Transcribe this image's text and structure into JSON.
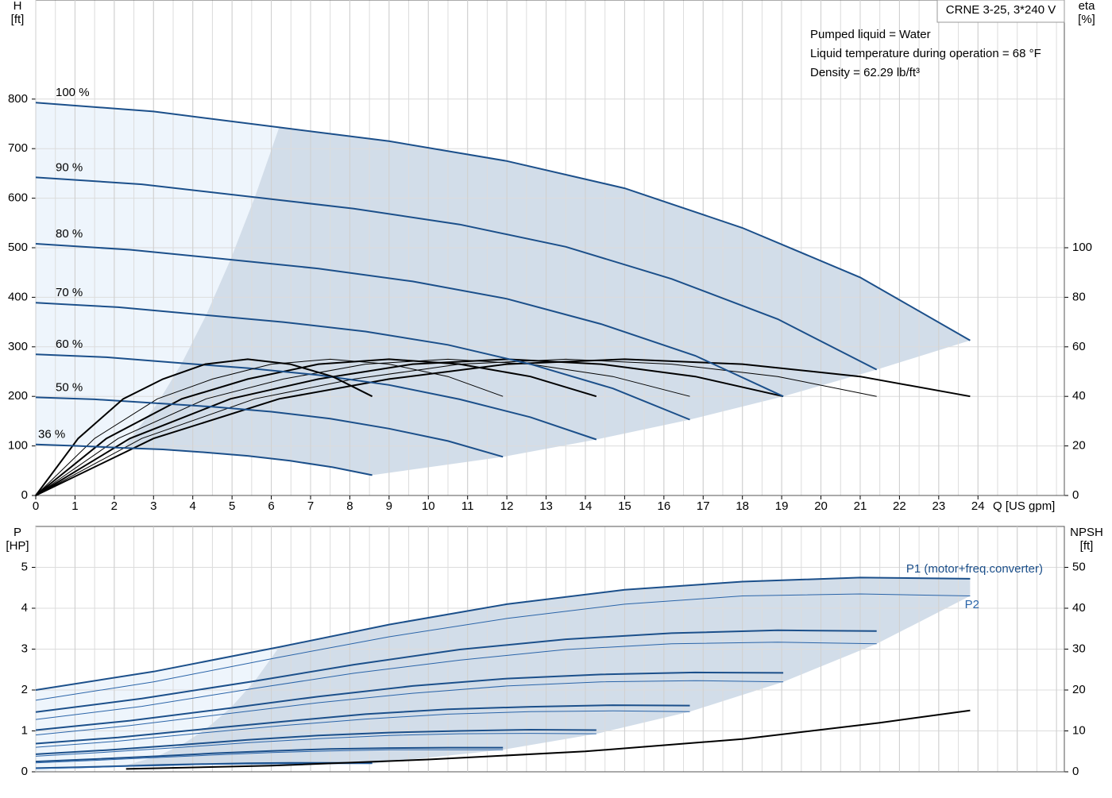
{
  "chart_data": [
    {
      "type": "line",
      "model": "CRNE 3-25, 3*240 V",
      "info": [
        "Pumped liquid = Water",
        "Liquid temperature during operation = 68 °F",
        "Density = 62.29 lb/ft³"
      ],
      "y_label": "H",
      "y_unit": "[ft]",
      "y2_label": "eta",
      "y2_unit": "[%]",
      "x_label": "Q [US gpm]",
      "xlim": [
        0,
        26.2
      ],
      "xticks": [
        0,
        1,
        2,
        3,
        4,
        5,
        6,
        7,
        8,
        9,
        10,
        11,
        12,
        13,
        14,
        15,
        16,
        17,
        18,
        19,
        20,
        21,
        22,
        23,
        24
      ],
      "ylim": [
        0,
        1000
      ],
      "yticks": [
        0,
        100,
        200,
        300,
        400,
        500,
        600,
        700,
        800
      ],
      "y2lim": [
        0,
        200
      ],
      "y2ticks": [
        0,
        20,
        40,
        60,
        80,
        100
      ],
      "grid": true,
      "series": [
        {
          "name": "100 %",
          "color": "#1b4f8a",
          "x": [
            0,
            3,
            6.2,
            9,
            12,
            15,
            18,
            21,
            23.8
          ],
          "values": [
            793,
            775,
            743,
            715,
            675,
            620,
            540,
            440,
            313
          ],
          "eta": [
            0,
            23,
            39,
            47,
            53,
            55,
            53,
            48,
            40
          ]
        },
        {
          "name": "90 %",
          "color": "#1b4f8a",
          "x": [
            0,
            2.7,
            5.58,
            8.1,
            10.8,
            13.5,
            16.2,
            18.9,
            21.42
          ],
          "values": [
            642,
            628,
            602,
            579,
            547,
            502,
            437,
            356,
            254
          ],
          "eta": [
            0,
            23,
            39,
            47,
            53,
            55,
            53,
            48,
            40
          ]
        },
        {
          "name": "80 %",
          "color": "#1b4f8a",
          "x": [
            0,
            2.4,
            4.96,
            7.2,
            9.6,
            12,
            14.4,
            16.8,
            19.04
          ],
          "values": [
            508,
            496,
            476,
            458,
            432,
            397,
            346,
            282,
            200
          ],
          "eta": [
            0,
            23,
            39,
            47,
            53,
            55,
            53,
            48,
            40
          ]
        },
        {
          "name": "70 %",
          "color": "#1b4f8a",
          "x": [
            0,
            2.1,
            4.34,
            6.3,
            8.4,
            10.5,
            12.6,
            14.7,
            16.66
          ],
          "values": [
            389,
            380,
            364,
            350,
            331,
            304,
            265,
            216,
            153
          ],
          "eta": [
            0,
            23,
            39,
            47,
            53,
            55,
            53,
            48,
            40
          ]
        },
        {
          "name": "60 %",
          "color": "#1b4f8a",
          "x": [
            0,
            1.8,
            3.72,
            5.4,
            7.2,
            9,
            10.8,
            12.6,
            14.28
          ],
          "values": [
            285,
            279,
            267,
            257,
            243,
            223,
            194,
            158,
            113
          ],
          "eta": [
            0,
            23,
            39,
            47,
            53,
            55,
            53,
            48,
            40
          ]
        },
        {
          "name": "50 %",
          "color": "#1b4f8a",
          "x": [
            0,
            1.5,
            3.1,
            4.5,
            6,
            7.5,
            9,
            10.5,
            11.9
          ],
          "values": [
            198,
            194,
            186,
            179,
            169,
            155,
            135,
            110,
            78
          ],
          "eta": [
            0,
            23,
            39,
            47,
            53,
            55,
            53,
            48,
            40
          ]
        },
        {
          "name": "36 %",
          "color": "#1b4f8a",
          "x": [
            0,
            1.08,
            2.23,
            3.24,
            4.32,
            5.4,
            6.48,
            7.56,
            8.57
          ],
          "values": [
            103,
            100,
            96,
            93,
            87,
            80,
            70,
            57,
            41
          ],
          "eta": [
            0,
            23,
            39,
            47,
            53,
            55,
            53,
            48,
            40
          ]
        }
      ]
    },
    {
      "type": "line",
      "y_label": "P",
      "y_unit": "[HP]",
      "y2_label": "NPSH",
      "y2_unit": "[ft]",
      "xlim": [
        0,
        26.2
      ],
      "ylim": [
        0,
        6
      ],
      "yticks": [
        0,
        1,
        2,
        3,
        4,
        5
      ],
      "y2lim": [
        0,
        60
      ],
      "y2ticks": [
        0,
        10,
        20,
        30,
        40,
        50
      ],
      "grid": true,
      "series": [
        {
          "name": "P1 (motor+freq.converter)",
          "color": "#1b4f8a",
          "curves": [
            {
              "x": [
                0,
                3,
                6.2,
                9,
                12,
                15,
                18,
                21,
                23.8
              ],
              "values": [
                2.0,
                2.45,
                3.05,
                3.6,
                4.1,
                4.45,
                4.65,
                4.75,
                4.72
              ]
            },
            {
              "x": [
                0,
                2.7,
                5.58,
                8.1,
                10.8,
                13.5,
                16.2,
                18.9,
                21.42
              ],
              "values": [
                1.46,
                1.79,
                2.22,
                2.62,
                2.99,
                3.24,
                3.39,
                3.46,
                3.44
              ]
            },
            {
              "x": [
                0,
                2.4,
                4.96,
                7.2,
                9.6,
                12,
                14.4,
                16.8,
                19.04
              ],
              "values": [
                1.02,
                1.25,
                1.56,
                1.84,
                2.1,
                2.28,
                2.38,
                2.43,
                2.42
              ]
            },
            {
              "x": [
                0,
                2.1,
                4.34,
                6.3,
                8.4,
                10.5,
                12.6,
                14.7,
                16.66
              ],
              "values": [
                0.69,
                0.84,
                1.05,
                1.23,
                1.41,
                1.53,
                1.59,
                1.63,
                1.62
              ]
            },
            {
              "x": [
                0,
                1.8,
                3.72,
                5.4,
                7.2,
                9,
                10.8,
                12.6,
                14.28
              ],
              "values": [
                0.43,
                0.53,
                0.66,
                0.78,
                0.89,
                0.96,
                1.0,
                1.03,
                1.02
              ]
            },
            {
              "x": [
                0,
                1.5,
                3.1,
                4.5,
                6,
                7.5,
                9,
                10.5,
                11.9
              ],
              "values": [
                0.25,
                0.31,
                0.38,
                0.45,
                0.51,
                0.56,
                0.58,
                0.59,
                0.59
              ]
            },
            {
              "x": [
                0,
                1.08,
                2.23,
                3.24,
                4.32,
                5.4,
                6.48,
                7.56,
                8.57
              ],
              "values": [
                0.09,
                0.11,
                0.14,
                0.17,
                0.19,
                0.21,
                0.22,
                0.22,
                0.22
              ]
            }
          ]
        },
        {
          "name": "P2",
          "color": "#2a64a8",
          "curves": [
            {
              "x": [
                0,
                3,
                6.2,
                9,
                12,
                15,
                18,
                21,
                23.8
              ],
              "values": [
                1.75,
                2.2,
                2.8,
                3.3,
                3.75,
                4.1,
                4.3,
                4.35,
                4.3
              ]
            },
            {
              "x": [
                0,
                2.7,
                5.58,
                8.1,
                10.8,
                13.5,
                16.2,
                18.9,
                21.42
              ],
              "values": [
                1.28,
                1.6,
                2.04,
                2.41,
                2.73,
                2.99,
                3.13,
                3.17,
                3.13
              ]
            },
            {
              "x": [
                0,
                2.4,
                4.96,
                7.2,
                9.6,
                12,
                14.4,
                16.8,
                19.04
              ],
              "values": [
                0.9,
                1.13,
                1.43,
                1.69,
                1.92,
                2.1,
                2.2,
                2.23,
                2.2
              ]
            },
            {
              "x": [
                0,
                2.1,
                4.34,
                6.3,
                8.4,
                10.5,
                12.6,
                14.7,
                16.66
              ],
              "values": [
                0.6,
                0.75,
                0.96,
                1.13,
                1.29,
                1.41,
                1.47,
                1.49,
                1.47
              ]
            },
            {
              "x": [
                0,
                1.8,
                3.72,
                5.4,
                7.2,
                9,
                10.8,
                12.6,
                14.28
              ],
              "values": [
                0.38,
                0.48,
                0.6,
                0.71,
                0.81,
                0.89,
                0.93,
                0.94,
                0.93
              ]
            },
            {
              "x": [
                0,
                1.5,
                3.1,
                4.5,
                6,
                7.5,
                9,
                10.5,
                11.9
              ],
              "values": [
                0.22,
                0.28,
                0.35,
                0.41,
                0.47,
                0.51,
                0.54,
                0.54,
                0.54
              ]
            },
            {
              "x": [
                0,
                1.08,
                2.23,
                3.24,
                4.32,
                5.4,
                6.48,
                7.56,
                8.57
              ],
              "values": [
                0.08,
                0.1,
                0.13,
                0.15,
                0.18,
                0.19,
                0.2,
                0.2,
                0.2
              ]
            }
          ]
        },
        {
          "axis": "y2",
          "color": "#000000",
          "x": [
            2.3,
            6,
            10,
            14,
            18,
            21.5,
            23.8
          ],
          "values": [
            0.7,
            1.5,
            3,
            5,
            8,
            12,
            15
          ]
        }
      ]
    }
  ]
}
